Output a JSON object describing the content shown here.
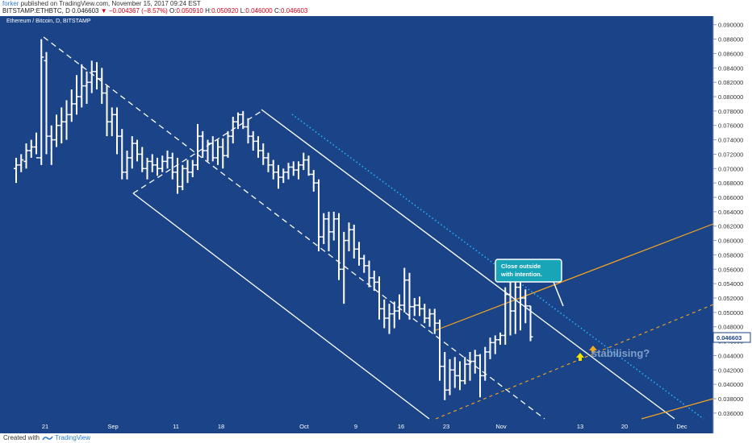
{
  "header": {
    "user": "forker",
    "published_text": "published on TradingView.com, November 15, 2017 09:24 EST",
    "symbol": "BITSTAMP:ETHBTC, D",
    "last": "0.046603",
    "arrow": "▼",
    "change": "−0.004367 (−8.57%)",
    "open_label": "O:",
    "open": "0.050910",
    "high_label": "H:",
    "high": "0.050920",
    "low_label": "L:",
    "low": "0.046000",
    "close_label": "C:",
    "close": "0.046603"
  },
  "chart": {
    "instrument_title": "Ethereum / Bitcoin, D, BITSTAMP",
    "last_price_label": "0.046603",
    "annotation_bubble_line1": "Close outside",
    "annotation_bubble_line2": "with intention.",
    "annotation_text": "stabilising?"
  },
  "footer": {
    "created_with": "Created with",
    "brand": "TradingView"
  },
  "colors": {
    "background": "#1b4387",
    "bars": "#ffffff",
    "channel": "#ffffff",
    "dotted_line": "#23b5ff",
    "orange_line": "#f5a623",
    "bubble": "#19a5b8",
    "arrow": "#f5e400",
    "price_tag": "#ffffff"
  },
  "chart_data": {
    "type": "bar",
    "title": "Ethereum / Bitcoin, D, BITSTAMP",
    "x_tick_labels": [
      "21",
      "Sep",
      "11",
      "18",
      "Oct",
      "9",
      "16",
      "23",
      "Nov",
      "13",
      "20",
      "Dec"
    ],
    "y_tick_labels": [
      "0.090000",
      "0.088000",
      "0.086000",
      "0.084000",
      "0.082000",
      "0.080000",
      "0.078000",
      "0.076000",
      "0.074000",
      "0.072000",
      "0.070000",
      "0.068000",
      "0.066000",
      "0.064000",
      "0.062000",
      "0.060000",
      "0.058000",
      "0.056000",
      "0.054000",
      "0.052000",
      "0.050000",
      "0.048000",
      "0.046000",
      "0.044000",
      "0.042000",
      "0.040000",
      "0.038000",
      "0.036000"
    ],
    "ylim": [
      0.0352,
      0.0912
    ],
    "grid": false,
    "ohlc": [
      [
        0.07,
        0.0715,
        0.068,
        0.0705
      ],
      [
        0.0705,
        0.072,
        0.0695,
        0.0712
      ],
      [
        0.071,
        0.0735,
        0.07,
        0.0725
      ],
      [
        0.0725,
        0.074,
        0.0715,
        0.073
      ],
      [
        0.073,
        0.075,
        0.072,
        0.0715
      ],
      [
        0.0715,
        0.088,
        0.0705,
        0.0855
      ],
      [
        0.085,
        0.0862,
        0.072,
        0.0745
      ],
      [
        0.0745,
        0.076,
        0.0705,
        0.074
      ],
      [
        0.074,
        0.0775,
        0.073,
        0.076
      ],
      [
        0.076,
        0.0785,
        0.0735,
        0.0765
      ],
      [
        0.0765,
        0.0795,
        0.074,
        0.0775
      ],
      [
        0.0775,
        0.081,
        0.0765,
        0.079
      ],
      [
        0.079,
        0.083,
        0.0775,
        0.08
      ],
      [
        0.08,
        0.0845,
        0.0785,
        0.0815
      ],
      [
        0.0815,
        0.0835,
        0.079,
        0.082
      ],
      [
        0.082,
        0.085,
        0.0805,
        0.0835
      ],
      [
        0.0835,
        0.0848,
        0.081,
        0.0825
      ],
      [
        0.0825,
        0.084,
        0.079,
        0.0805
      ],
      [
        0.0805,
        0.0815,
        0.0745,
        0.0765
      ],
      [
        0.0765,
        0.0785,
        0.0745,
        0.0775
      ],
      [
        0.0775,
        0.0785,
        0.072,
        0.0745
      ],
      [
        0.0745,
        0.0755,
        0.0685,
        0.0695
      ],
      [
        0.0695,
        0.0725,
        0.0685,
        0.0715
      ],
      [
        0.0715,
        0.0745,
        0.07,
        0.0735
      ],
      [
        0.0735,
        0.074,
        0.071,
        0.072
      ],
      [
        0.072,
        0.073,
        0.0695,
        0.07
      ],
      [
        0.07,
        0.0715,
        0.0685,
        0.071
      ],
      [
        0.071,
        0.072,
        0.0695,
        0.0705
      ],
      [
        0.0705,
        0.0715,
        0.069,
        0.07
      ],
      [
        0.07,
        0.0718,
        0.0695,
        0.071
      ],
      [
        0.071,
        0.0725,
        0.07,
        0.0715
      ],
      [
        0.0715,
        0.0722,
        0.0685,
        0.0695
      ],
      [
        0.0695,
        0.0715,
        0.0665,
        0.0675
      ],
      [
        0.0675,
        0.0705,
        0.067,
        0.07
      ],
      [
        0.07,
        0.0712,
        0.068,
        0.0695
      ],
      [
        0.0695,
        0.0712,
        0.0688,
        0.0705
      ],
      [
        0.0705,
        0.0762,
        0.0698,
        0.0745
      ],
      [
        0.0745,
        0.0752,
        0.0715,
        0.0725
      ],
      [
        0.0725,
        0.074,
        0.071,
        0.0735
      ],
      [
        0.0735,
        0.0745,
        0.071,
        0.0715
      ],
      [
        0.0715,
        0.074,
        0.0705,
        0.073
      ],
      [
        0.073,
        0.0742,
        0.07,
        0.0718
      ],
      [
        0.0718,
        0.0752,
        0.0715,
        0.0745
      ],
      [
        0.0745,
        0.0772,
        0.0735,
        0.0765
      ],
      [
        0.0765,
        0.0778,
        0.0755,
        0.0775
      ],
      [
        0.0775,
        0.078,
        0.0755,
        0.0758
      ],
      [
        0.0758,
        0.077,
        0.0735,
        0.0745
      ],
      [
        0.0745,
        0.0752,
        0.0725,
        0.0738
      ],
      [
        0.0738,
        0.0745,
        0.0715,
        0.0725
      ],
      [
        0.0725,
        0.0735,
        0.0705,
        0.0715
      ],
      [
        0.0715,
        0.0722,
        0.0695,
        0.0705
      ],
      [
        0.0705,
        0.0712,
        0.0685,
        0.0695
      ],
      [
        0.0695,
        0.0705,
        0.0672,
        0.0688
      ],
      [
        0.0688,
        0.07,
        0.068,
        0.0695
      ],
      [
        0.0695,
        0.0708,
        0.0685,
        0.0702
      ],
      [
        0.0702,
        0.071,
        0.069,
        0.0698
      ],
      [
        0.0698,
        0.071,
        0.0685,
        0.0705
      ],
      [
        0.0705,
        0.0722,
        0.0698,
        0.0712
      ],
      [
        0.0712,
        0.0718,
        0.069,
        0.0692
      ],
      [
        0.0692,
        0.0698,
        0.0668,
        0.068
      ],
      [
        0.068,
        0.0685,
        0.0585,
        0.0605
      ],
      [
        0.0605,
        0.0638,
        0.0595,
        0.063
      ],
      [
        0.063,
        0.064,
        0.0585,
        0.0612
      ],
      [
        0.0612,
        0.064,
        0.06,
        0.063
      ],
      [
        0.063,
        0.0638,
        0.0545,
        0.056
      ],
      [
        0.056,
        0.0612,
        0.0512,
        0.06
      ],
      [
        0.06,
        0.0625,
        0.0585,
        0.0615
      ],
      [
        0.0615,
        0.0622,
        0.0575,
        0.0588
      ],
      [
        0.0588,
        0.0598,
        0.0565,
        0.0575
      ],
      [
        0.0575,
        0.058,
        0.0555,
        0.0565
      ],
      [
        0.0565,
        0.0572,
        0.0535,
        0.0548
      ],
      [
        0.0548,
        0.0558,
        0.053,
        0.0542
      ],
      [
        0.0542,
        0.055,
        0.049,
        0.0505
      ],
      [
        0.0505,
        0.0518,
        0.0478,
        0.0492
      ],
      [
        0.0492,
        0.0512,
        0.047,
        0.0498
      ],
      [
        0.0498,
        0.0515,
        0.0478,
        0.0502
      ],
      [
        0.0502,
        0.0525,
        0.049,
        0.051
      ],
      [
        0.051,
        0.0562,
        0.05,
        0.0545
      ],
      [
        0.0545,
        0.0555,
        0.049,
        0.0508
      ],
      [
        0.0508,
        0.052,
        0.0495,
        0.051
      ],
      [
        0.051,
        0.0522,
        0.0495,
        0.0505
      ],
      [
        0.0505,
        0.0512,
        0.0485,
        0.0492
      ],
      [
        0.0492,
        0.0505,
        0.048,
        0.0498
      ],
      [
        0.0498,
        0.0505,
        0.047,
        0.0485
      ],
      [
        0.0485,
        0.049,
        0.0405,
        0.0425
      ],
      [
        0.0425,
        0.0445,
        0.0378,
        0.0392
      ],
      [
        0.0392,
        0.0435,
        0.0385,
        0.042
      ],
      [
        0.042,
        0.0438,
        0.0395,
        0.0412
      ],
      [
        0.0412,
        0.0432,
        0.0392,
        0.0405
      ],
      [
        0.0405,
        0.0438,
        0.04,
        0.0428
      ],
      [
        0.0428,
        0.0445,
        0.0405,
        0.0432
      ],
      [
        0.0432,
        0.0448,
        0.0415,
        0.044
      ],
      [
        0.044,
        0.0442,
        0.0382,
        0.0412
      ],
      [
        0.0412,
        0.0452,
        0.0405,
        0.0445
      ],
      [
        0.0445,
        0.0465,
        0.0435,
        0.0458
      ],
      [
        0.0458,
        0.0468,
        0.0442,
        0.0462
      ],
      [
        0.0462,
        0.0472,
        0.0455,
        0.0468
      ],
      [
        0.0468,
        0.0535,
        0.0455,
        0.0525
      ],
      [
        0.0525,
        0.0548,
        0.0468,
        0.0502
      ],
      [
        0.0502,
        0.0545,
        0.047,
        0.0535
      ],
      [
        0.0535,
        0.0542,
        0.0475,
        0.052
      ],
      [
        0.052,
        0.0532,
        0.0485,
        0.0509
      ],
      [
        0.0509,
        0.0509,
        0.046,
        0.0466
      ]
    ],
    "channel": [
      {
        "from": [
          "Aug 16",
          0.0882
        ],
        "to": [
          "Nov 26",
          0.0352
        ]
      },
      {
        "from": [
          "Sep 2",
          0.0668
        ],
        "to": [
          "Oct 21",
          0.0352
        ]
      },
      {
        "from": [
          "Sep 21",
          0.0781
        ],
        "to": [
          "Dec 5",
          0.0352
        ]
      }
    ]
  }
}
